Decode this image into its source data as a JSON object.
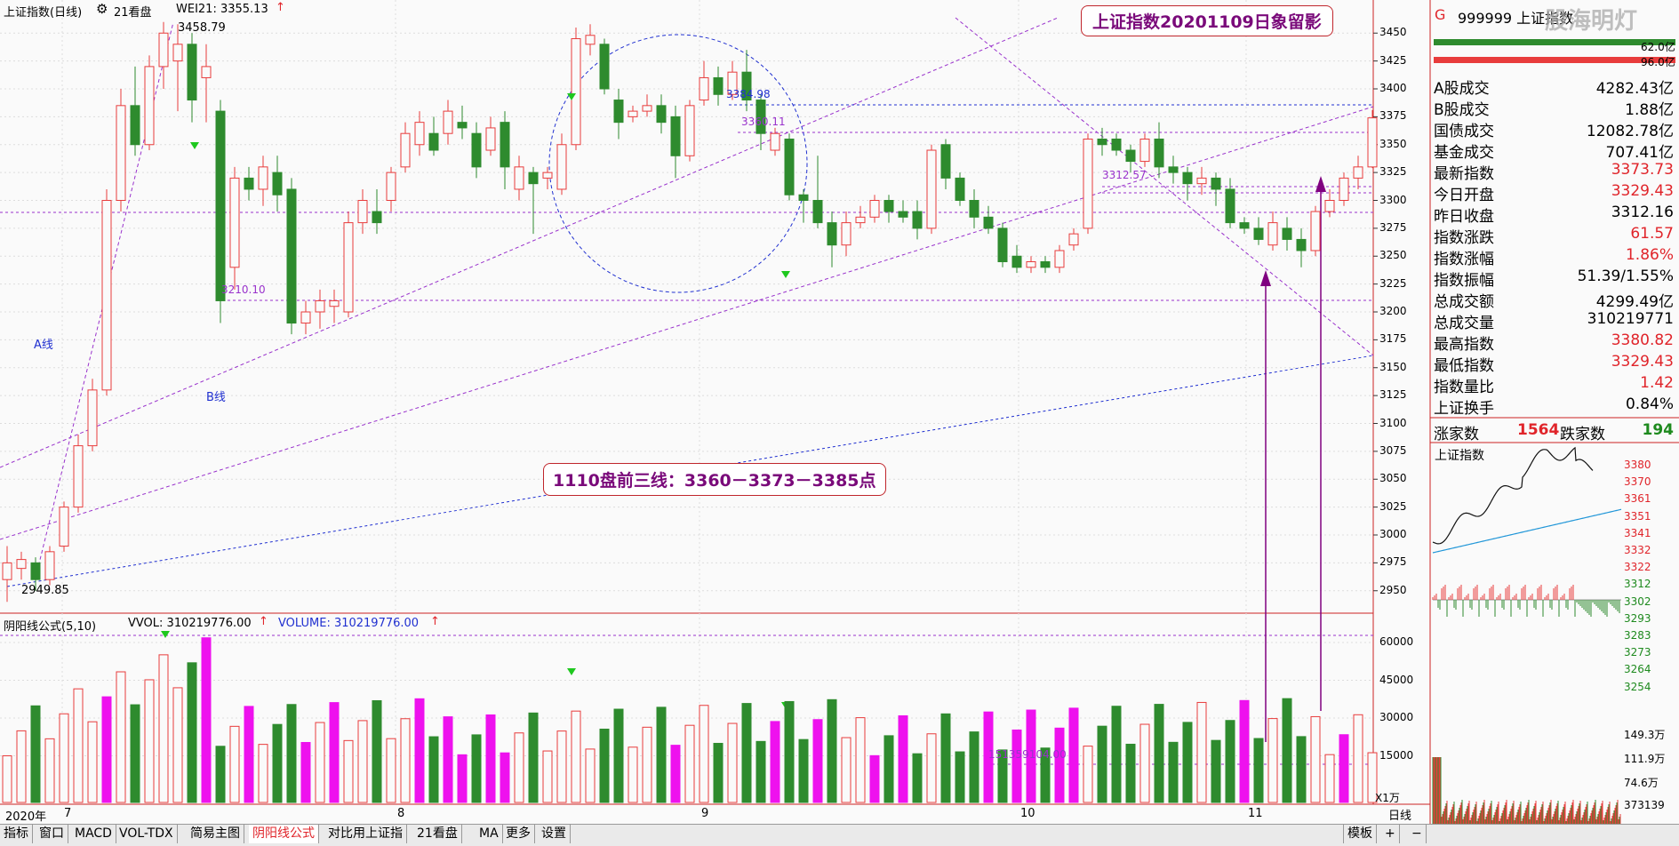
{
  "header": {
    "title": "上证指数(日线)",
    "mode": "21看盘",
    "indicator": "WEI21: 3355.13"
  },
  "main_callout": "上证指数20201109日象留影",
  "mid_callout": "1110盘前三线：3360－3373－3385点",
  "annotations": {
    "high_label": "3458.79",
    "low_label": "2949.85",
    "lvl_3384": "3384.98",
    "lvl_3360": "3360.11",
    "lvl_3312": "3312.57",
    "lvl_3210": "3210.10",
    "line_a": "A线",
    "line_b": "B线",
    "vol_note": "151359104.00"
  },
  "price_axis": [
    "3450",
    "3425",
    "3400",
    "3375",
    "3350",
    "3325",
    "3300",
    "3275",
    "3250",
    "3225",
    "3200",
    "3175",
    "3150",
    "3125",
    "3100",
    "3075",
    "3050",
    "3025",
    "3000",
    "2975",
    "2950"
  ],
  "volume_axis": [
    "60000",
    "45000",
    "30000",
    "15000"
  ],
  "volume_unit": "X1万",
  "volume_header": {
    "name": "阴阳线公式(5,10)",
    "vvol": "VVOL: 310219776.00",
    "volume": "VOLUME: 310219776.00"
  },
  "date_axis": [
    "2020年",
    "7",
    "8",
    "9",
    "10",
    "11"
  ],
  "period": "日线",
  "side": {
    "code_prefix": "G",
    "code": "999999 上证指数",
    "sub1": "62.0亿",
    "sub2": "96.0亿",
    "rows": [
      {
        "label": "A股成交",
        "value": "4282.43亿",
        "color": "black"
      },
      {
        "label": "B股成交",
        "value": "1.88亿",
        "color": "black"
      },
      {
        "label": "国债成交",
        "value": "12082.78亿",
        "color": "black"
      },
      {
        "label": "基金成交",
        "value": "707.41亿",
        "color": "black"
      },
      {
        "label": "最新指数",
        "value": "3373.73",
        "color": "red"
      },
      {
        "label": "今日开盘",
        "value": "3329.43",
        "color": "red"
      },
      {
        "label": "昨日收盘",
        "value": "3312.16",
        "color": "black"
      },
      {
        "label": "指数涨跌",
        "value": "61.57",
        "color": "red"
      },
      {
        "label": "指数涨幅",
        "value": "1.86%",
        "color": "red"
      },
      {
        "label": "指数振幅",
        "value": "51.39/1.55%",
        "color": "black"
      },
      {
        "label": "总成交额",
        "value": "4299.49亿",
        "color": "black"
      },
      {
        "label": "总成交量",
        "value": "310219771",
        "color": "black"
      },
      {
        "label": "最高指数",
        "value": "3380.82",
        "color": "red"
      },
      {
        "label": "最低指数",
        "value": "3329.43",
        "color": "red"
      },
      {
        "label": "指数量比",
        "value": "1.42",
        "color": "red"
      },
      {
        "label": "上证换手",
        "value": "0.84%",
        "color": "black"
      }
    ],
    "up_label": "涨家数",
    "up_value": "1564",
    "down_label": "跌家数",
    "down_value": "194",
    "mini_title": "上证指数",
    "mini_axis": [
      "3380",
      "3370",
      "3361",
      "3351",
      "3341",
      "3332",
      "3322",
      "3312",
      "3302",
      "3293",
      "3283",
      "3273",
      "3264",
      "3254"
    ],
    "mini_vol_axis": [
      "149.3万",
      "111.9万",
      "74.6万",
      "373139"
    ],
    "watermark": "股海明灯"
  },
  "bottom_tabs": [
    "指标",
    "窗口",
    "MACD",
    "VOL-TDX",
    "简易主图",
    "阴阳线公式",
    "对比用上证指",
    "21看盘",
    "MA",
    "更多",
    "设置"
  ],
  "bottom_right": [
    "模板",
    "+",
    "−"
  ],
  "colors": {
    "up": "#e83c3c",
    "down": "#2e8b2e",
    "magenta": "#ee11ee",
    "purple": "#9932cc",
    "blue": "#2030d0",
    "accent": "#c0262c"
  }
}
